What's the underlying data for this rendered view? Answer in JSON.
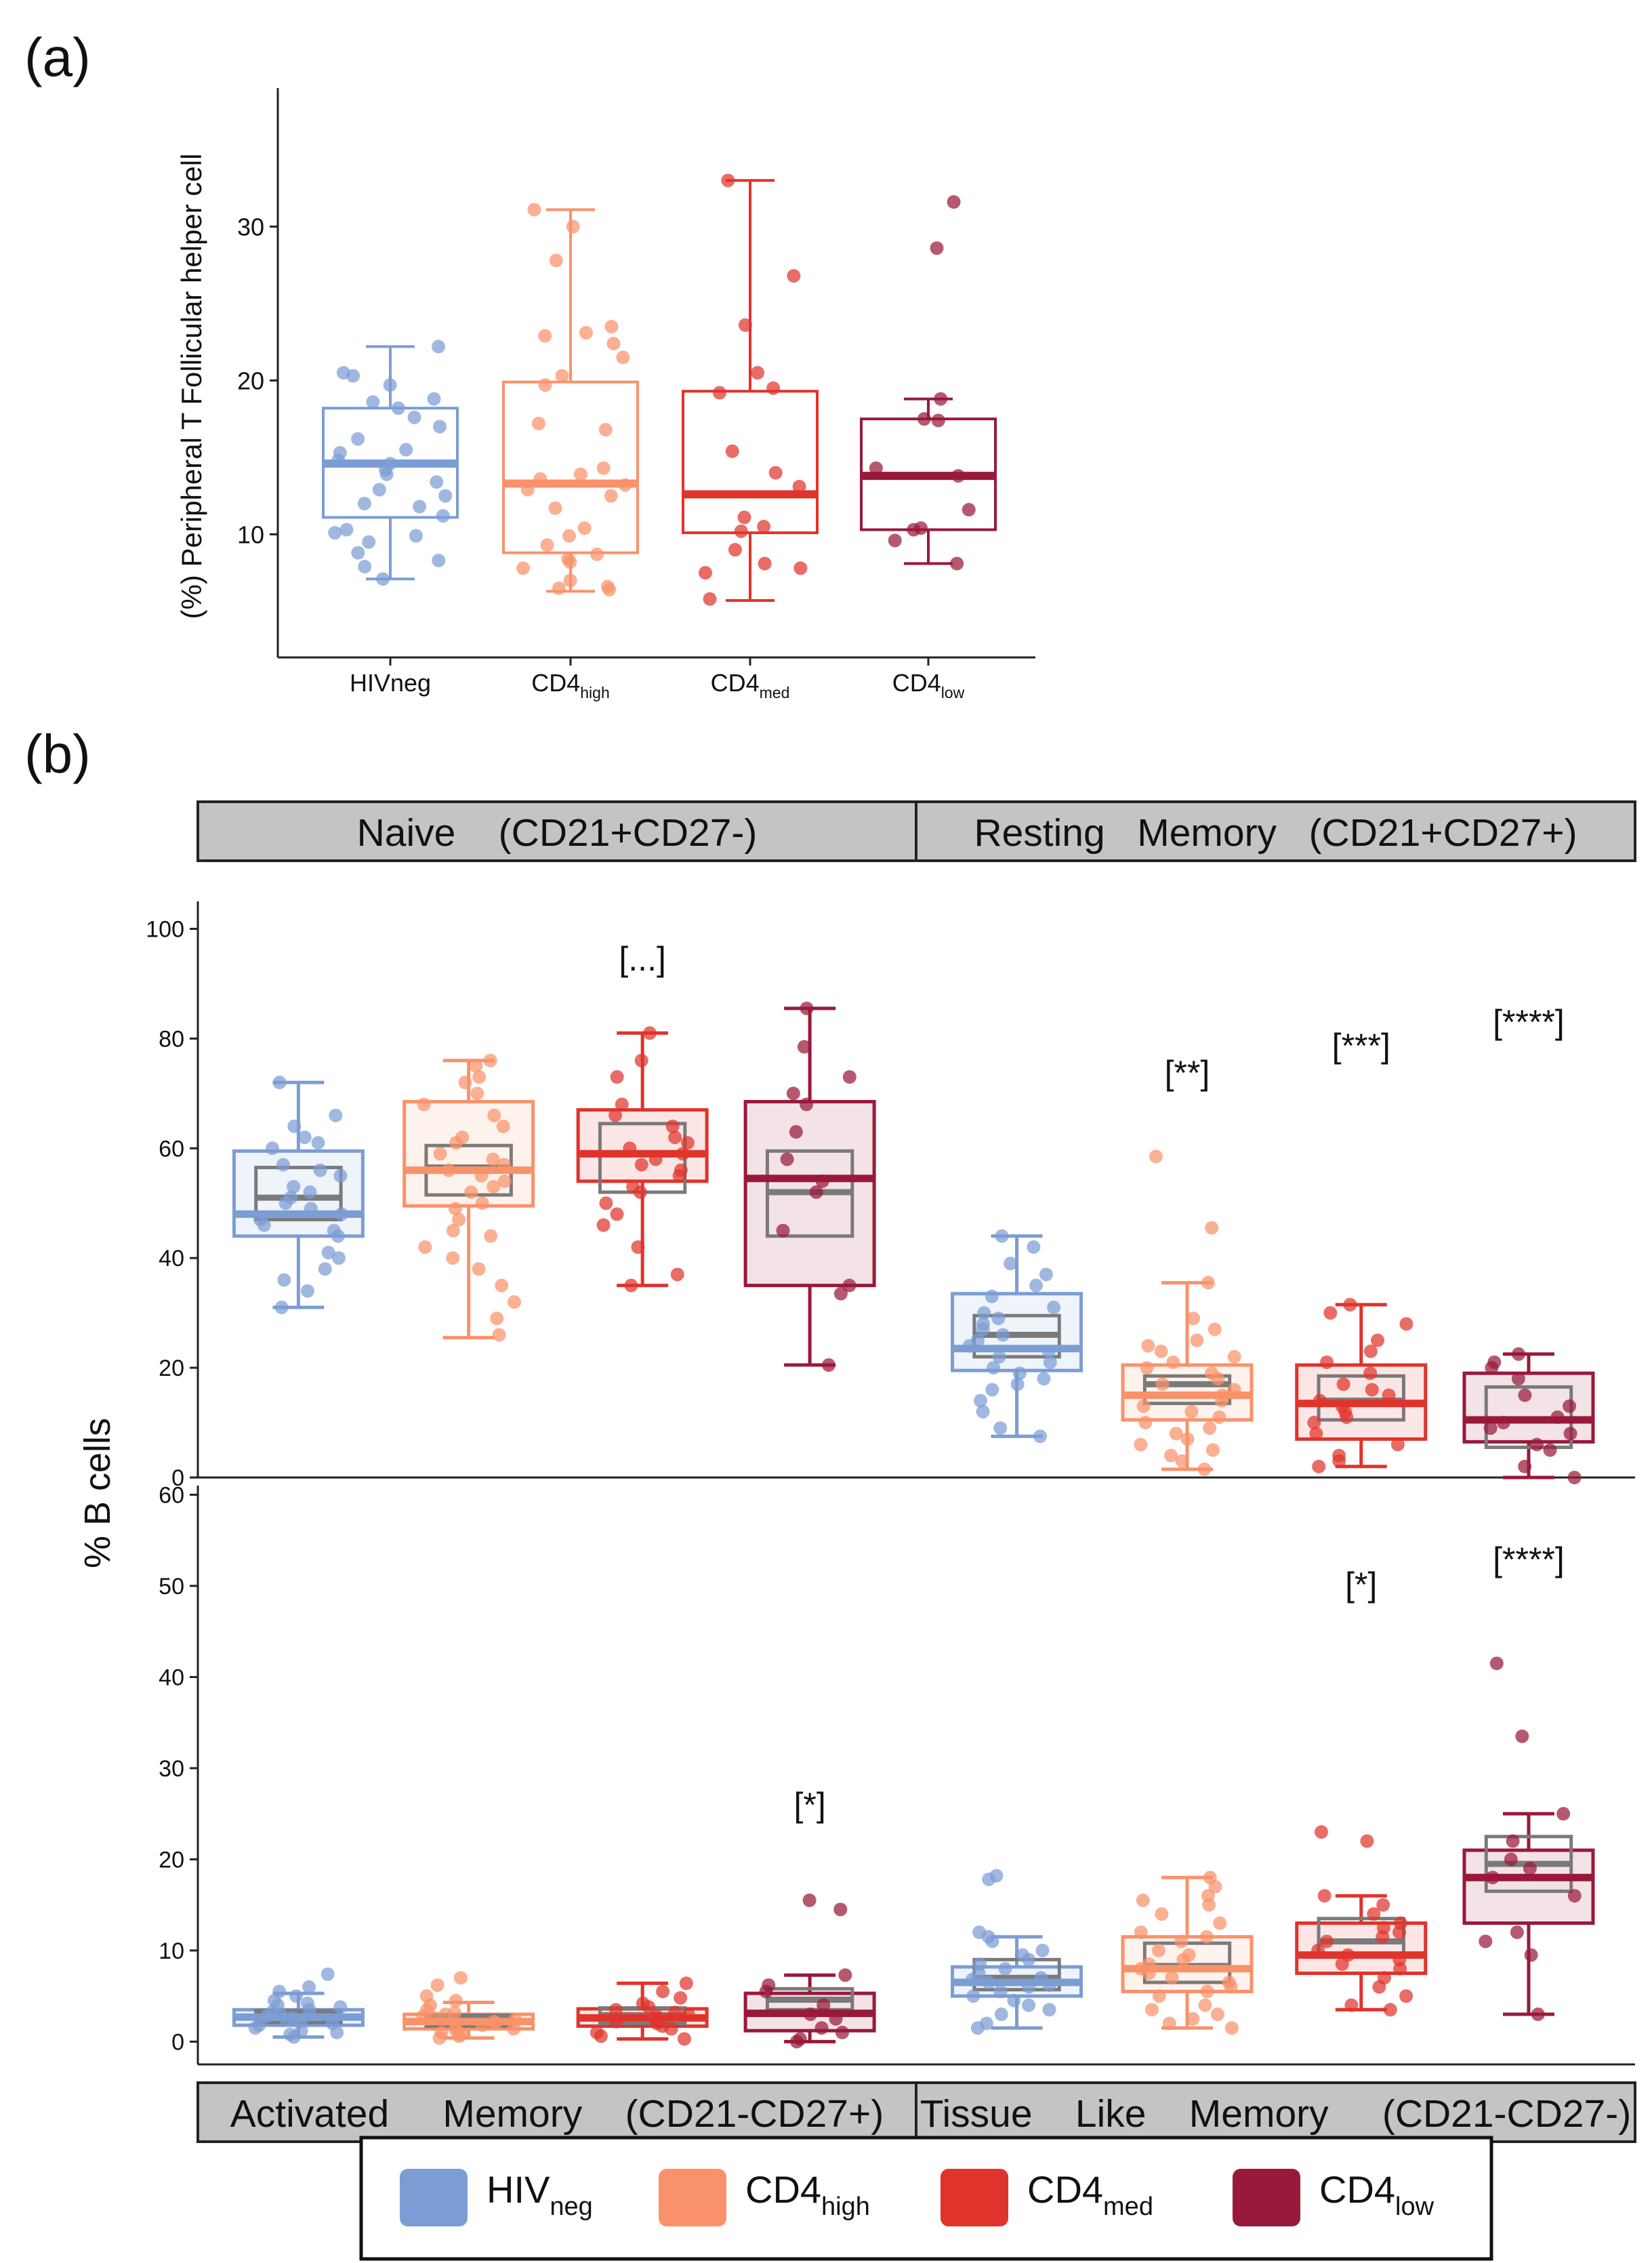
{
  "figure": {
    "panel_a_label": "(a)",
    "panel_b_label": "(b)"
  },
  "colors": {
    "HIVneg": "#7b9dd4",
    "CD4high": "#f9926a",
    "CD4med": "#e0332b",
    "CD4low": "#99193a",
    "inner_box": "#7a7a7a",
    "strip_fill": "#c4c4c4"
  },
  "legend": {
    "items": [
      {
        "group": "HIVneg",
        "base": "HIV",
        "sub": "neg"
      },
      {
        "group": "CD4high",
        "base": "CD4",
        "sub": "high"
      },
      {
        "group": "CD4med",
        "base": "CD4",
        "sub": "med"
      },
      {
        "group": "CD4low",
        "base": "CD4",
        "sub": "low"
      }
    ]
  },
  "chart_data": [
    {
      "type": "box",
      "panel": "(a)",
      "title": "",
      "ylabel": "(%) Peripheral T Follicular helper cell",
      "xlabel": "",
      "ylim": [
        2,
        39
      ],
      "yticks": [
        10,
        20,
        30
      ],
      "categories": [
        {
          "base": "HIVneg",
          "sub": ""
        },
        {
          "base": "CD4",
          "sub": "high"
        },
        {
          "base": "CD4",
          "sub": "med"
        },
        {
          "base": "CD4",
          "sub": "low"
        }
      ],
      "groups": [
        "HIVneg",
        "CD4high",
        "CD4med",
        "CD4low"
      ],
      "boxes": [
        {
          "q1": 11.1,
          "median": 14.6,
          "q3": 18.2,
          "wlo": 7.1,
          "whi": 22.2
        },
        {
          "q1": 8.8,
          "median": 13.3,
          "q3": 19.9,
          "wlo": 6.3,
          "whi": 31.1
        },
        {
          "q1": 10.1,
          "median": 12.6,
          "q3": 19.3,
          "wlo": 5.7,
          "whi": 33.0
        },
        {
          "q1": 10.3,
          "median": 13.8,
          "q3": 17.5,
          "wlo": 8.1,
          "whi": 18.8
        }
      ],
      "points": [
        [
          22.2,
          20.5,
          20.3,
          19.7,
          18.8,
          18.6,
          18.2,
          17.6,
          17.0,
          16.2,
          15.5,
          15.3,
          14.8,
          14.6,
          14.2,
          13.9,
          13.4,
          12.9,
          12.5,
          12.0,
          11.8,
          11.2,
          10.3,
          10.1,
          9.9,
          9.5,
          8.8,
          8.3,
          7.9,
          7.1
        ],
        [
          31.1,
          30.0,
          27.8,
          23.5,
          23.1,
          22.9,
          22.4,
          21.5,
          20.3,
          19.7,
          17.2,
          16.8,
          14.3,
          13.9,
          13.6,
          13.2,
          12.9,
          12.5,
          11.7,
          10.4,
          9.9,
          9.3,
          8.7,
          8.4,
          8.2,
          7.8,
          7.0,
          6.6,
          6.5,
          6.4
        ],
        [
          33.0,
          26.8,
          23.6,
          20.5,
          19.5,
          19.2,
          15.4,
          14.0,
          13.1,
          11.1,
          10.5,
          10.2,
          9.0,
          8.1,
          7.8,
          7.5,
          5.8
        ],
        [
          31.6,
          28.6,
          18.8,
          17.5,
          17.4,
          14.3,
          13.8,
          11.6,
          10.4,
          10.3,
          9.6,
          8.1
        ]
      ]
    },
    {
      "type": "box",
      "panel": "(b)",
      "title": "",
      "ylabel": "% B cells",
      "xlabel": "",
      "facets": [
        {
          "strip": "Naive    (CD21+CD27-)",
          "ylim": [
            0,
            105
          ],
          "yticks": [
            0,
            20,
            40,
            60,
            80,
            100
          ],
          "significance": [
            {
              "group": "CD4med",
              "label": "[...]"
            }
          ],
          "boxes": [
            {
              "q1": 44,
              "median": 48,
              "q3": 59.5,
              "wlo": 31,
              "whi": 72,
              "gq1": 47,
              "gmed": 51,
              "gq3": 56.5
            },
            {
              "q1": 49.5,
              "median": 56,
              "q3": 68.5,
              "wlo": 25.5,
              "whi": 76,
              "gq1": 51.5,
              "gmed": 56.5,
              "gq3": 60.5
            },
            {
              "q1": 54,
              "median": 59,
              "q3": 67,
              "wlo": 35,
              "whi": 81,
              "gq1": 52,
              "gmed": 59,
              "gq3": 64.5
            },
            {
              "q1": 35,
              "median": 54.5,
              "q3": 68.5,
              "wlo": 20.5,
              "whi": 85.5,
              "gq1": 44,
              "gmed": 52,
              "gq3": 59.5
            }
          ],
          "points": [
            [
              72,
              66,
              64,
              62,
              61,
              60,
              57,
              56,
              55,
              53,
              52,
              51,
              50,
              49,
              48,
              47,
              46,
              45,
              44,
              41,
              40,
              38,
              36,
              34,
              31
            ],
            [
              76,
              75,
              73,
              72,
              70,
              68,
              66,
              64,
              62,
              61,
              59,
              58,
              57,
              56,
              55,
              54,
              53,
              52,
              50,
              49,
              47,
              45,
              44,
              42,
              40,
              38,
              35,
              32,
              29,
              26
            ],
            [
              81,
              76,
              73,
              68,
              66,
              64,
              62,
              61,
              60,
              59,
              58,
              57,
              56,
              55,
              53,
              52,
              50,
              48,
              46,
              42,
              37,
              35
            ],
            [
              85.5,
              78.5,
              73,
              70,
              68,
              63,
              58,
              54,
              52,
              45,
              35,
              33.5,
              20.5
            ]
          ]
        },
        {
          "strip": "Resting   Memory   (CD21+CD27+)",
          "ylim": [
            0,
            105
          ],
          "yticks": [
            0,
            20,
            40,
            60,
            80,
            100
          ],
          "significance": [
            {
              "group": "CD4high",
              "label": "[**]"
            },
            {
              "group": "CD4med",
              "label": "[***]"
            },
            {
              "group": "CD4low",
              "label": "[****]"
            }
          ],
          "boxes": [
            {
              "q1": 19.5,
              "median": 23.5,
              "q3": 33.5,
              "wlo": 7.5,
              "whi": 44,
              "gq1": 22,
              "gmed": 26,
              "gq3": 29.5
            },
            {
              "q1": 10.5,
              "median": 15,
              "q3": 20.5,
              "wlo": 1.5,
              "whi": 35.5,
              "gq1": 13.5,
              "gmed": 17,
              "gq3": 18.5
            },
            {
              "q1": 7,
              "median": 13.5,
              "q3": 20.5,
              "wlo": 2,
              "whi": 31.5,
              "gq1": 10.5,
              "gmed": 14,
              "gq3": 18.5
            },
            {
              "q1": 6.5,
              "median": 10.5,
              "q3": 19,
              "wlo": 0,
              "whi": 22.5,
              "gq1": 5.5,
              "gmed": 10.5,
              "gq3": 16.5
            }
          ],
          "points": [
            [
              44,
              42,
              39,
              37,
              35,
              33,
              31,
              30,
              29,
              28,
              27,
              26,
              25,
              24,
              23,
              22,
              21,
              20,
              19,
              18,
              17,
              16,
              14,
              12,
              9,
              7.5
            ],
            [
              58.5,
              45.5,
              35.5,
              29,
              27,
              25,
              24,
              23,
              22,
              21,
              20,
              19,
              18,
              17,
              16,
              15,
              14,
              13,
              12,
              11,
              10,
              9,
              8,
              7,
              6,
              5,
              4,
              3,
              1.5
            ],
            [
              31.5,
              30,
              28,
              25,
              23,
              21,
              19,
              17,
              16,
              15,
              14,
              13,
              12,
              11,
              10,
              8,
              6,
              4,
              3,
              2
            ],
            [
              22.5,
              21,
              20,
              18,
              15,
              13,
              11,
              10,
              9,
              8,
              6,
              5,
              2,
              0
            ]
          ]
        },
        {
          "strip": "Activated     Memory    (CD21-CD27+)",
          "ylim": [
            -2.5,
            61
          ],
          "yticks": [
            0,
            10,
            20,
            30,
            40,
            50,
            60
          ],
          "significance": [
            {
              "group": "CD4low",
              "label": "[*]"
            }
          ],
          "boxes": [
            {
              "q1": 1.8,
              "median": 2.7,
              "q3": 3.5,
              "wlo": 0.5,
              "whi": 5.3,
              "gq1": 2.1,
              "gmed": 2.9,
              "gq3": 3.4
            },
            {
              "q1": 1.4,
              "median": 2.2,
              "q3": 3.0,
              "wlo": 0.4,
              "whi": 4.3,
              "gq1": 1.7,
              "gmed": 2.4,
              "gq3": 2.9
            },
            {
              "q1": 1.7,
              "median": 2.6,
              "q3": 3.6,
              "wlo": 0.3,
              "whi": 6.4,
              "gq1": 2.0,
              "gmed": 2.9,
              "gq3": 3.7
            },
            {
              "q1": 1.2,
              "median": 3.1,
              "q3": 5.3,
              "wlo": 0.0,
              "whi": 7.3,
              "gq1": 3.5,
              "gmed": 4.6,
              "gq3": 5.8
            }
          ],
          "points": [
            [
              7.4,
              6.0,
              5.5,
              5.0,
              4.5,
              4.2,
              4.0,
              3.8,
              3.5,
              3.3,
              3.0,
              2.8,
              2.6,
              2.4,
              2.2,
              2.0,
              1.8,
              1.5,
              1.2,
              1.0,
              0.8,
              0.5
            ],
            [
              7.0,
              6.2,
              5.0,
              4.5,
              4.0,
              3.5,
              3.2,
              3.0,
              2.8,
              2.6,
              2.4,
              2.2,
              2.0,
              1.8,
              1.6,
              1.4,
              1.2,
              1.0,
              0.8,
              0.6,
              0.4
            ],
            [
              6.4,
              5.5,
              4.8,
              4.2,
              3.8,
              3.5,
              3.2,
              3.0,
              2.8,
              2.5,
              2.2,
              2.0,
              1.7,
              1.4,
              1.0,
              0.6,
              0.3
            ],
            [
              15.5,
              14.5,
              7.3,
              6.2,
              5.5,
              4.0,
              3.0,
              2.5,
              1.5,
              1.0,
              0.3,
              0.0
            ]
          ]
        },
        {
          "strip": "Tissue    Like    Memory     (CD21-CD27-)",
          "ylim": [
            -2.5,
            61
          ],
          "yticks": [
            0,
            10,
            20,
            30,
            40,
            50,
            60
          ],
          "significance": [
            {
              "group": "CD4med",
              "label": "[*]"
            },
            {
              "group": "CD4low",
              "label": "[****]"
            }
          ],
          "boxes": [
            {
              "q1": 5,
              "median": 6.5,
              "q3": 8.2,
              "wlo": 1.5,
              "whi": 11.5,
              "gq1": 5.7,
              "gmed": 7.0,
              "gq3": 9.0
            },
            {
              "q1": 5.5,
              "median": 8,
              "q3": 11.5,
              "wlo": 1.5,
              "whi": 18,
              "gq1": 6.5,
              "gmed": 8.3,
              "gq3": 10.8
            },
            {
              "q1": 7.5,
              "median": 9.5,
              "q3": 13,
              "wlo": 3.5,
              "whi": 16,
              "gq1": 9.3,
              "gmed": 11,
              "gq3": 13.5
            },
            {
              "q1": 13,
              "median": 18,
              "q3": 21,
              "wlo": 3,
              "whi": 25,
              "gq1": 16.5,
              "gmed": 19.5,
              "gq3": 22.5
            }
          ],
          "points": [
            [
              18.2,
              17.8,
              12.0,
              11.5,
              11.0,
              10.0,
              9.5,
              9.0,
              8.5,
              8.0,
              7.5,
              7.0,
              6.8,
              6.5,
              6.2,
              6.0,
              5.5,
              5.0,
              4.5,
              4.0,
              3.5,
              3.0,
              2.0,
              1.5
            ],
            [
              18.0,
              17.0,
              16.0,
              15.5,
              15.0,
              14.0,
              13.0,
              12.0,
              11.5,
              11.0,
              10.0,
              9.5,
              9.0,
              8.5,
              8.0,
              7.5,
              7.0,
              6.5,
              6.0,
              5.5,
              5.0,
              4.0,
              3.5,
              3.0,
              2.5,
              2.0,
              1.5
            ],
            [
              23.0,
              22.0,
              16.0,
              15.0,
              14.0,
              13.0,
              12.5,
              12.0,
              11.5,
              11.0,
              10.0,
              9.5,
              9.0,
              8.5,
              8.0,
              7.0,
              6.0,
              5.0,
              4.0,
              3.5
            ],
            [
              41.5,
              33.5,
              25.0,
              22.0,
              20.0,
              19.0,
              18.0,
              16.0,
              12.0,
              11.0,
              9.5,
              3.0
            ]
          ]
        }
      ]
    }
  ]
}
